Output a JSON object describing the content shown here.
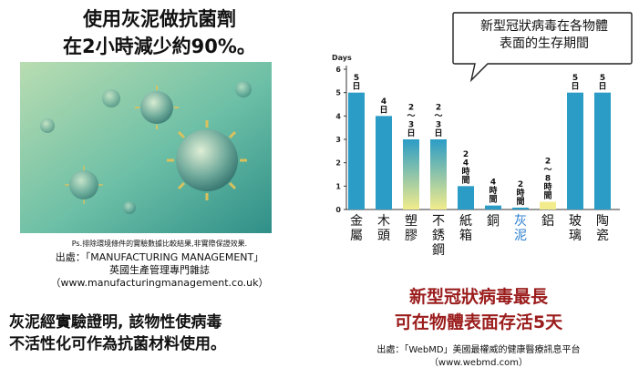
{
  "left": {
    "title_lines": [
      "使用灰泥做抗菌劑",
      "在2小時減少約90%。"
    ],
    "ps_note": "Ps.排除環境條件的實驗數據比較結果,非實際保證效果.",
    "source_lines": [
      "出處：「MANUFACTURING MANAGEMENT」",
      "英國生產管理專門雜誌",
      "（www.manufacturingmanagement.co.uk）"
    ],
    "body_lines": [
      "灰泥經實驗證明, 該物性使病毒",
      "不活性化可作為抗菌材料使用。"
    ]
  },
  "right": {
    "callout_lines": [
      "新型冠狀病毒在各物體",
      "表面的生存期間"
    ],
    "headline_lines": [
      "新型冠狀病毒最長",
      "可在物體表面存活5天"
    ],
    "source_lines": [
      "出處：「WebMD」美國最權威的健康醫療訊息平台",
      "（www.webmd.com）"
    ]
  },
  "colors": {
    "bar": "#2b9cc6",
    "bar_gradient_top": "#2b9cc6",
    "bar_gradient_bottom": "#f2ec8c",
    "highlight_label": "#2b7fd0",
    "headline": "#9b1c1c"
  },
  "chart_data": {
    "type": "bar",
    "ylabel": "Days",
    "ylim": [
      0,
      6
    ],
    "yticks": [
      0,
      1,
      2,
      3,
      4,
      5,
      6
    ],
    "categories": [
      "金屬",
      "木頭",
      "塑膠",
      "不銹鋼",
      "紙箱",
      "銅",
      "灰泥",
      "鋁",
      "玻璃",
      "陶瓷"
    ],
    "values": [
      5,
      4,
      3,
      3,
      1,
      0.17,
      0.08,
      0.33,
      5,
      5
    ],
    "value_labels": [
      "5日",
      "4日",
      "2~3日",
      "2~3日",
      "24時間",
      "4時間",
      "2時間",
      "2~8時間",
      "5日",
      "5日"
    ],
    "highlight_category": "灰泥",
    "grid": false
  }
}
